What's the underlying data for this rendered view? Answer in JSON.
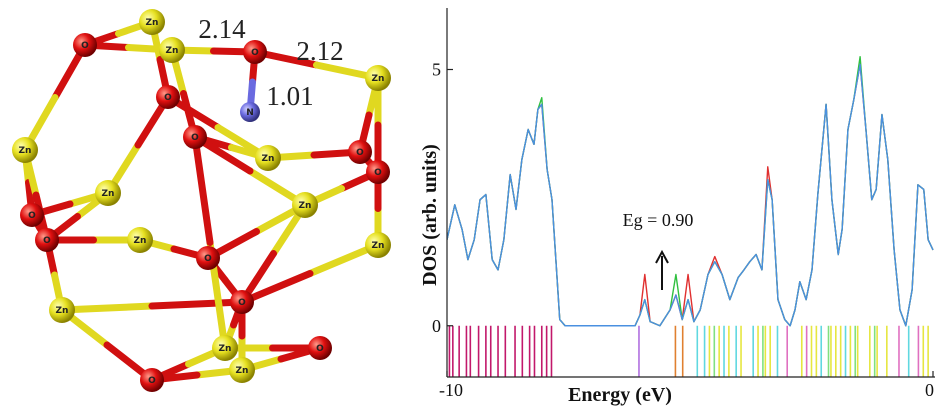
{
  "molecule": {
    "atoms": [
      {
        "label": "Zn"
      },
      {
        "label": "Zn"
      },
      {
        "label": "Zn"
      },
      {
        "label": "Zn"
      },
      {
        "label": "Zn"
      },
      {
        "label": "Zn"
      },
      {
        "label": "Zn"
      },
      {
        "label": "Zn"
      },
      {
        "label": "Zn"
      },
      {
        "label": "Zn"
      },
      {
        "label": "Zn"
      },
      {
        "label": "Zn"
      },
      {
        "label": "O"
      },
      {
        "label": "O"
      },
      {
        "label": "O"
      },
      {
        "label": "O"
      },
      {
        "label": "O"
      },
      {
        "label": "O"
      },
      {
        "label": "O"
      },
      {
        "label": "O"
      },
      {
        "label": "O"
      },
      {
        "label": "O"
      },
      {
        "label": "O"
      },
      {
        "label": "O"
      },
      {
        "label": "N"
      }
    ],
    "bond_labels": [
      "2.14",
      "2.12",
      "1.01"
    ]
  },
  "chart_data": {
    "type": "line",
    "x_label": "Energy (eV)",
    "y_label": "DOS (arb. units)",
    "annotation": "Eg = 0.90",
    "xlim": [
      -10,
      0
    ],
    "xticks": [
      -10,
      0
    ],
    "ylim": [
      -1,
      6.2
    ],
    "yticks": [
      0,
      5
    ],
    "x": [
      -10.0,
      -9.84,
      -9.69,
      -9.57,
      -9.44,
      -9.32,
      -9.2,
      -9.07,
      -8.95,
      -8.83,
      -8.7,
      -8.58,
      -8.46,
      -8.33,
      -8.21,
      -8.13,
      -8.05,
      -7.94,
      -7.84,
      -7.76,
      -7.68,
      -7.57,
      -6.13,
      -6.03,
      -5.93,
      -5.82,
      -5.62,
      -5.41,
      -5.29,
      -5.16,
      -5.04,
      -4.92,
      -4.79,
      -4.63,
      -4.49,
      -4.34,
      -4.18,
      -4.01,
      -3.89,
      -3.77,
      -3.64,
      -3.52,
      -3.4,
      -3.31,
      -3.19,
      -3.05,
      -2.94,
      -2.84,
      -2.74,
      -2.61,
      -2.49,
      -2.37,
      -2.2,
      -2.08,
      -1.95,
      -1.87,
      -1.75,
      -1.63,
      -1.5,
      -1.38,
      -1.26,
      -1.17,
      -1.05,
      -0.93,
      -0.8,
      -0.68,
      -0.56,
      -0.43,
      -0.31,
      -0.19,
      -0.1,
      0.0
    ],
    "series": [
      {
        "color": "#e03030",
        "values": [
          1.68,
          2.36,
          1.88,
          1.29,
          1.68,
          2.46,
          2.56,
          1.29,
          1.09,
          1.68,
          2.95,
          2.27,
          3.24,
          3.83,
          3.54,
          4.22,
          4.32,
          3.05,
          2.46,
          1.29,
          0.12,
          0,
          0,
          0.21,
          1.0,
          0.08,
          0,
          0.31,
          0.6,
          0.12,
          1.0,
          0.08,
          0.31,
          1.0,
          1.35,
          1.0,
          0.51,
          0.94,
          1.09,
          1.25,
          1.39,
          1.09,
          3.1,
          2.46,
          0.51,
          0.12,
          0,
          0.31,
          0.86,
          0.51,
          1.09,
          2.56,
          4.32,
          2.46,
          1.39,
          1.88,
          3.83,
          4.41,
          5.1,
          3.83,
          2.46,
          2.66,
          4.12,
          3.24,
          1.48,
          0.31,
          0,
          0.7,
          2.75,
          2.66,
          1.68,
          1.48
        ]
      },
      {
        "color": "#30c040",
        "values": [
          1.68,
          2.36,
          1.88,
          1.29,
          1.68,
          2.46,
          2.56,
          1.29,
          1.09,
          1.68,
          2.95,
          2.27,
          3.24,
          3.83,
          3.54,
          4.22,
          4.45,
          3.05,
          2.46,
          1.29,
          0.12,
          0,
          0,
          0.21,
          0.51,
          0.08,
          0,
          0.31,
          1.0,
          0.12,
          0.51,
          0.08,
          0.31,
          1.0,
          1.25,
          1.0,
          0.51,
          0.94,
          1.09,
          1.25,
          1.39,
          1.09,
          2.85,
          2.46,
          0.51,
          0.12,
          0,
          0.31,
          0.86,
          0.51,
          1.09,
          2.56,
          4.32,
          2.46,
          1.39,
          1.88,
          3.83,
          4.41,
          5.25,
          3.83,
          2.46,
          2.66,
          4.12,
          3.24,
          1.48,
          0.31,
          0,
          0.7,
          2.75,
          2.66,
          1.68,
          1.48
        ]
      },
      {
        "color": "#4a90e0",
        "values": [
          1.68,
          2.36,
          1.88,
          1.29,
          1.68,
          2.46,
          2.56,
          1.29,
          1.09,
          1.68,
          2.95,
          2.27,
          3.24,
          3.83,
          3.54,
          4.22,
          4.32,
          3.05,
          2.46,
          1.29,
          0.12,
          0,
          0,
          0.21,
          0.51,
          0.08,
          0,
          0.31,
          0.6,
          0.12,
          0.51,
          0.08,
          0.31,
          1.0,
          1.25,
          1.0,
          0.51,
          0.94,
          1.09,
          1.25,
          1.39,
          1.09,
          2.85,
          2.46,
          0.51,
          0.12,
          0,
          0.31,
          0.86,
          0.51,
          1.09,
          2.56,
          4.32,
          2.46,
          1.39,
          1.88,
          3.83,
          4.41,
          5.1,
          3.83,
          2.46,
          2.66,
          4.12,
          3.24,
          1.48,
          0.31,
          0,
          0.7,
          2.75,
          2.66,
          1.68,
          1.48
        ]
      }
    ],
    "levels": [
      {
        "color": "#c2186b",
        "x": [
          -9.95,
          -9.88,
          -9.75,
          -9.6,
          -9.52,
          -9.35,
          -9.2,
          -9.1,
          -8.95,
          -8.8,
          -8.6,
          -8.45,
          -8.3,
          -8.2,
          -8.05,
          -7.95,
          -7.85
        ]
      },
      {
        "color": "#b070e0",
        "x": [
          -6.05
        ]
      },
      {
        "color": "#e08030",
        "x": [
          -5.3,
          -5.15
        ]
      },
      {
        "color": "#60d8e0",
        "x": [
          -4.85,
          -4.7,
          -4.3,
          -4.05,
          -3.7,
          -3.2,
          -2.3,
          -1.8,
          -0.5
        ]
      },
      {
        "color": "#e6e640",
        "x": [
          -4.6,
          -4.4,
          -4.2,
          -3.95,
          -3.6,
          -3.45,
          -3.35,
          -2.7,
          -2.5,
          -2.4,
          -2.1,
          -2.0,
          -1.9,
          -1.7,
          -1.55,
          -1.3,
          -1.15,
          -0.95,
          -0.2,
          -0.1
        ]
      },
      {
        "color": "#80e080",
        "x": [
          -4.5,
          -3.5,
          -2.15,
          -1.6,
          -1.2
        ]
      },
      {
        "color": "#e070c0",
        "x": [
          -3.0,
          -2.6,
          -0.7,
          -0.3
        ]
      }
    ]
  }
}
